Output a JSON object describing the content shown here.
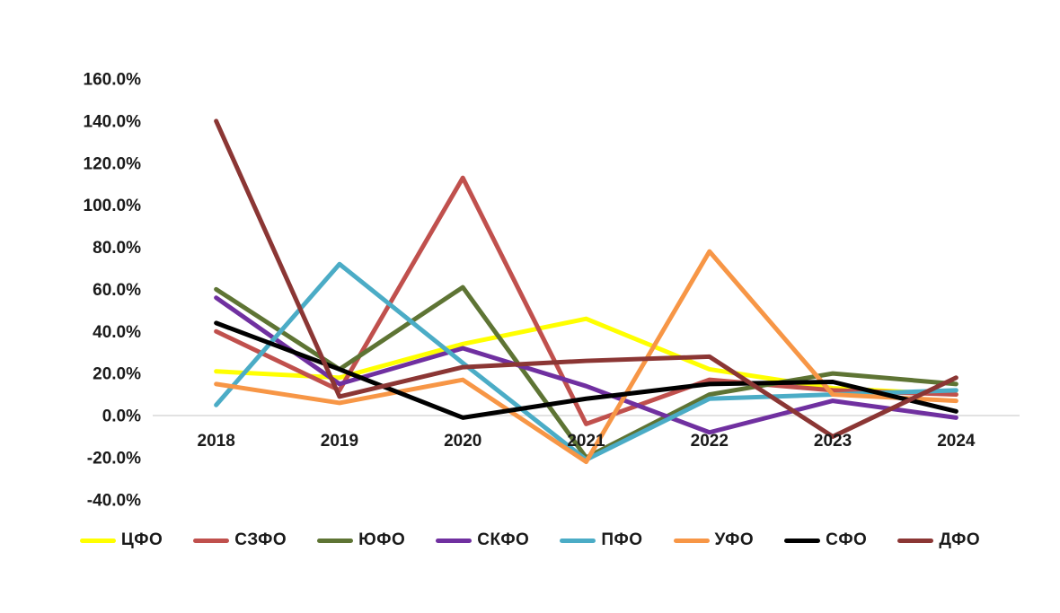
{
  "chart_data": {
    "type": "line",
    "title": "",
    "xlabel": "",
    "ylabel": "",
    "x": [
      "2018",
      "2019",
      "2020",
      "2021",
      "2022",
      "2023",
      "2024"
    ],
    "series": [
      {
        "id": "cfo",
        "name": "ЦФО",
        "color": "#FFFF00",
        "values": [
          21,
          18,
          34,
          46,
          22,
          13,
          10
        ]
      },
      {
        "id": "szfo",
        "name": "СЗФО",
        "color": "#C0504D",
        "values": [
          40,
          12,
          113,
          -4,
          17,
          12,
          10
        ]
      },
      {
        "id": "yufo",
        "name": "ЮФО",
        "color": "#5E7434",
        "values": [
          60,
          22,
          61,
          -20,
          10,
          20,
          15
        ]
      },
      {
        "id": "skfo",
        "name": "СКФО",
        "color": "#7030A0",
        "values": [
          56,
          15,
          32,
          14,
          -8,
          7,
          -1
        ]
      },
      {
        "id": "pfo",
        "name": "ПФО",
        "color": "#4BACC6",
        "values": [
          5,
          72,
          25,
          -21,
          8,
          10,
          12
        ]
      },
      {
        "id": "ufo",
        "name": "УФО",
        "color": "#F79646",
        "values": [
          15,
          6,
          17,
          -22,
          78,
          10,
          7
        ]
      },
      {
        "id": "sfo",
        "name": "СФО",
        "color": "#000000",
        "values": [
          44,
          22,
          -1,
          8,
          15,
          16,
          2
        ]
      },
      {
        "id": "dfo",
        "name": "ДФО",
        "color": "#8B3634",
        "values": [
          140,
          9,
          23,
          26,
          28,
          -10,
          18
        ]
      }
    ],
    "y_ticks": [
      "160.0%",
      "140.0%",
      "120.0%",
      "100.0%",
      "80.0%",
      "60.0%",
      "40.0%",
      "20.0%",
      "0.0%",
      "-20.0%",
      "-40.0%"
    ],
    "y_tick_values": [
      160,
      140,
      120,
      100,
      80,
      60,
      40,
      20,
      0,
      -20,
      -40
    ],
    "ylim": [
      -40,
      160
    ],
    "grid": "zero-line-only",
    "zero_line_color": "#D9D9D9",
    "legend_position": "bottom"
  }
}
